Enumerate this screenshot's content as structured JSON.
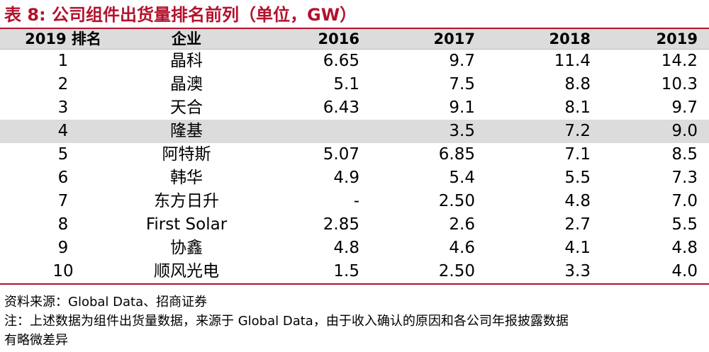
{
  "title": "表 8:  公司组件出货量排名前列（单位，GW）",
  "table": {
    "headers": [
      "2019 排名",
      "企业",
      "2016",
      "2017",
      "2018",
      "2019"
    ],
    "rows": [
      {
        "rank": "1",
        "company": "晶科",
        "y2016": "6.65",
        "y2017": "9.7",
        "y2018": "11.4",
        "y2019": "14.2"
      },
      {
        "rank": "2",
        "company": "晶澳",
        "y2016": "5.1",
        "y2017": "7.5",
        "y2018": "8.8",
        "y2019": "10.3"
      },
      {
        "rank": "3",
        "company": "天合",
        "y2016": "6.43",
        "y2017": "9.1",
        "y2018": "8.1",
        "y2019": "9.7"
      },
      {
        "rank": "4",
        "company": "隆基",
        "y2016": "",
        "y2017": "3.5",
        "y2018": "7.2",
        "y2019": "9.0"
      },
      {
        "rank": "5",
        "company": "阿特斯",
        "y2016": "5.07",
        "y2017": "6.85",
        "y2018": "7.1",
        "y2019": "8.5"
      },
      {
        "rank": "6",
        "company": "韩华",
        "y2016": "4.9",
        "y2017": "5.4",
        "y2018": "5.5",
        "y2019": "7.3"
      },
      {
        "rank": "7",
        "company": "东方日升",
        "y2016": "-",
        "y2017": "2.50",
        "y2018": "4.8",
        "y2019": "7.0"
      },
      {
        "rank": "8",
        "company": "First Solar",
        "y2016": "2.85",
        "y2017": "2.6",
        "y2018": "2.7",
        "y2019": "5.5"
      },
      {
        "rank": "9",
        "company": "协鑫",
        "y2016": "4.8",
        "y2017": "4.6",
        "y2018": "4.1",
        "y2019": "4.8"
      },
      {
        "rank": "10",
        "company": "顺风光电",
        "y2016": "1.5",
        "y2017": "2.50",
        "y2018": "3.3",
        "y2019": "4.0"
      }
    ]
  },
  "source": "资料来源：Global Data、招商证券",
  "note_line1": "注：上述数据为组件出货量数据，来源于 Global Data，由于收入确认的原因和各公司年报披露数据",
  "note_line2": "有略微差异",
  "colors": {
    "accent": "#b3122c",
    "header_bg": "#dcdcdc",
    "highlight_row_bg": "#dcdcdc"
  }
}
